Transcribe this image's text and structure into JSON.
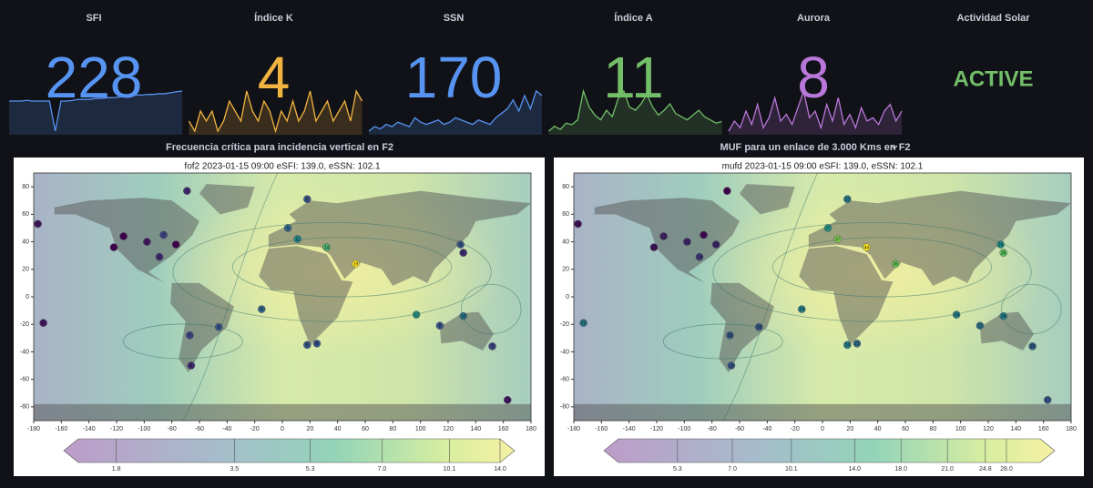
{
  "stat_panels": [
    {
      "title": "SFI",
      "value": 228,
      "color": "#5794f2",
      "sparkline": [
        150,
        150,
        150,
        152,
        150,
        150,
        150,
        150,
        60,
        150,
        150,
        152,
        155,
        155,
        155,
        158,
        158,
        160,
        160,
        162,
        165,
        165,
        168,
        168,
        170,
        170,
        172,
        172,
        175,
        178,
        180
      ]
    },
    {
      "title": "Índice K",
      "value": 4,
      "color": "#f2b441",
      "sparkline": [
        2,
        1,
        3,
        2,
        3,
        1,
        2,
        4,
        3,
        2,
        5,
        3,
        2,
        4,
        3,
        1,
        3,
        2,
        4,
        2,
        3,
        5,
        2,
        3,
        4,
        2,
        3,
        4,
        2,
        5,
        4
      ]
    },
    {
      "title": "SSN",
      "value": 170,
      "color": "#5794f2",
      "sparkline": [
        80,
        90,
        85,
        95,
        90,
        100,
        95,
        90,
        110,
        100,
        95,
        100,
        105,
        95,
        100,
        110,
        105,
        100,
        95,
        105,
        100,
        95,
        110,
        120,
        130,
        150,
        125,
        160,
        130,
        170,
        160
      ]
    },
    {
      "title": "Índice A",
      "value": 11,
      "color": "#73bf69",
      "sparkline": [
        5,
        8,
        6,
        10,
        9,
        12,
        30,
        20,
        15,
        12,
        18,
        14,
        25,
        30,
        20,
        18,
        22,
        28,
        20,
        15,
        18,
        22,
        16,
        14,
        12,
        15,
        18,
        14,
        12,
        10,
        11
      ]
    },
    {
      "title": "Aurora",
      "value": 8,
      "color": "#b877d9",
      "sparkline": [
        2,
        5,
        3,
        8,
        4,
        10,
        3,
        6,
        12,
        5,
        7,
        4,
        9,
        14,
        6,
        8,
        3,
        10,
        5,
        12,
        4,
        7,
        3,
        9,
        5,
        6,
        4,
        8,
        10,
        5,
        8
      ]
    },
    {
      "title": "Actividad Solar",
      "value": "ACTIVE",
      "color": "#73bf69"
    }
  ],
  "map_panels": [
    {
      "panel_title": "Frecuencia crítica para incidencia vertical en F2",
      "plot_title": "fof2 2023-01-15 09:00 eSFI: 139.0, eSSN: 102.1",
      "xticks": [
        -180,
        -160,
        -140,
        -120,
        -100,
        -80,
        -60,
        -40,
        -20,
        0,
        20,
        40,
        60,
        80,
        100,
        120,
        140,
        160,
        180
      ],
      "yticks": [
        80,
        60,
        40,
        20,
        0,
        -20,
        -40,
        -60,
        -80
      ],
      "colorbar_ticks": [
        "1.8",
        "3.5",
        "5.3",
        "7.0",
        "10.1",
        "14.0"
      ],
      "stations": [
        [
          -69,
          77,
          6
        ],
        [
          -177,
          53,
          5
        ],
        [
          -115,
          44,
          4
        ],
        [
          -122,
          36,
          4
        ],
        [
          -98,
          40,
          5
        ],
        [
          -86,
          45,
          7
        ],
        [
          -77,
          38,
          4
        ],
        [
          -89,
          29,
          6
        ],
        [
          18,
          71,
          8
        ],
        [
          4,
          50,
          9
        ],
        [
          11,
          42,
          11
        ],
        [
          32,
          36,
          14
        ],
        [
          53,
          24,
          19
        ],
        [
          129,
          38,
          8
        ],
        [
          131,
          32,
          6
        ],
        [
          -15,
          -9,
          9
        ],
        [
          97,
          -13,
          12
        ],
        [
          131,
          -14,
          10
        ],
        [
          -173,
          -19,
          5
        ],
        [
          -67,
          -28,
          7
        ],
        [
          -46,
          -22,
          8
        ],
        [
          -66,
          -50,
          6
        ],
        [
          18,
          -35,
          8
        ],
        [
          25,
          -34,
          8
        ],
        [
          114,
          -21,
          8
        ],
        [
          152,
          -36,
          7
        ],
        [
          163,
          -75,
          5
        ]
      ]
    },
    {
      "panel_title": "MUF para un enlace de 3.000 Kms en F2",
      "plot_title": "mufd 2023-01-15 09:00 eSFI: 139.0, eSSN: 102.1",
      "xticks": [
        -180,
        -160,
        -140,
        -120,
        -100,
        -80,
        -60,
        -40,
        -20,
        0,
        20,
        40,
        60,
        80,
        100,
        120,
        140,
        160,
        180
      ],
      "yticks": [
        80,
        60,
        40,
        20,
        0,
        -20,
        -40,
        -60,
        -80
      ],
      "colorbar_ticks": [
        "5.3",
        "7.0",
        "10.1",
        "14.0",
        "18.0",
        "21.0",
        "24.8",
        "28.0"
      ],
      "stations": [
        [
          -69,
          77,
          8
        ],
        [
          -177,
          53,
          10
        ],
        [
          -115,
          44,
          12
        ],
        [
          -122,
          36,
          10
        ],
        [
          -98,
          40,
          12
        ],
        [
          -86,
          45,
          9
        ],
        [
          -77,
          38,
          12
        ],
        [
          -89,
          29,
          14
        ],
        [
          18,
          71,
          23
        ],
        [
          4,
          50,
          27
        ],
        [
          11,
          42,
          37
        ],
        [
          32,
          36,
          44
        ],
        [
          53,
          24,
          36
        ],
        [
          129,
          38,
          26
        ],
        [
          131,
          32,
          35
        ],
        [
          -15,
          -9,
          24
        ],
        [
          97,
          -13,
          24
        ],
        [
          131,
          -14,
          24
        ],
        [
          -173,
          -19,
          23
        ],
        [
          -67,
          -28,
          18
        ],
        [
          -46,
          -22,
          18
        ],
        [
          -66,
          -50,
          18
        ],
        [
          18,
          -35,
          24
        ],
        [
          25,
          -34,
          21
        ],
        [
          114,
          -21,
          22
        ],
        [
          152,
          -36,
          19
        ],
        [
          163,
          -75,
          17
        ]
      ]
    }
  ]
}
